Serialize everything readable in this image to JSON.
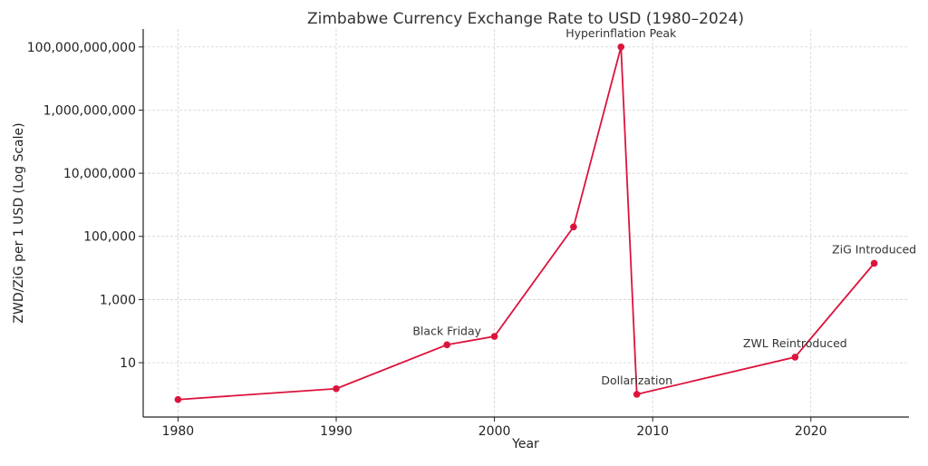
{
  "chart_data": {
    "type": "line",
    "title": "Zimbabwe Currency Exchange Rate to USD (1980–2024)",
    "xlabel": "Year",
    "ylabel": "ZWD/ZiG per 1 USD (Log Scale)",
    "yscale": "log",
    "xlim": [
      1977.8,
      2026.2
    ],
    "ylim": [
      0.19,
      370000000000
    ],
    "grid": true,
    "color": "#dc143c",
    "x_ticks": [
      1980,
      1990,
      2000,
      2010,
      2020
    ],
    "x_tick_labels": [
      "1980",
      "1990",
      "2000",
      "2010",
      "2020"
    ],
    "y_ticks": [
      10,
      1000,
      100000,
      10000000,
      1000000000,
      100000000000
    ],
    "y_tick_labels": [
      "10",
      "1,000",
      "100,000",
      "10,000,000",
      "1,000,000,000",
      "100,000,000,000"
    ],
    "x": [
      1980,
      1990,
      1997,
      2000,
      2005,
      2008,
      2009,
      2019,
      2024
    ],
    "y": [
      0.68,
      1.5,
      37,
      68,
      200000,
      100000000000,
      1,
      15,
      14000
    ],
    "annotations": [
      {
        "text": "Black Friday",
        "index": 2
      },
      {
        "text": "Hyperinflation Peak",
        "index": 5
      },
      {
        "text": "Dollarization",
        "index": 6
      },
      {
        "text": "ZWL Reintroduced",
        "index": 7
      },
      {
        "text": "ZiG Introduced",
        "index": 8
      }
    ]
  }
}
